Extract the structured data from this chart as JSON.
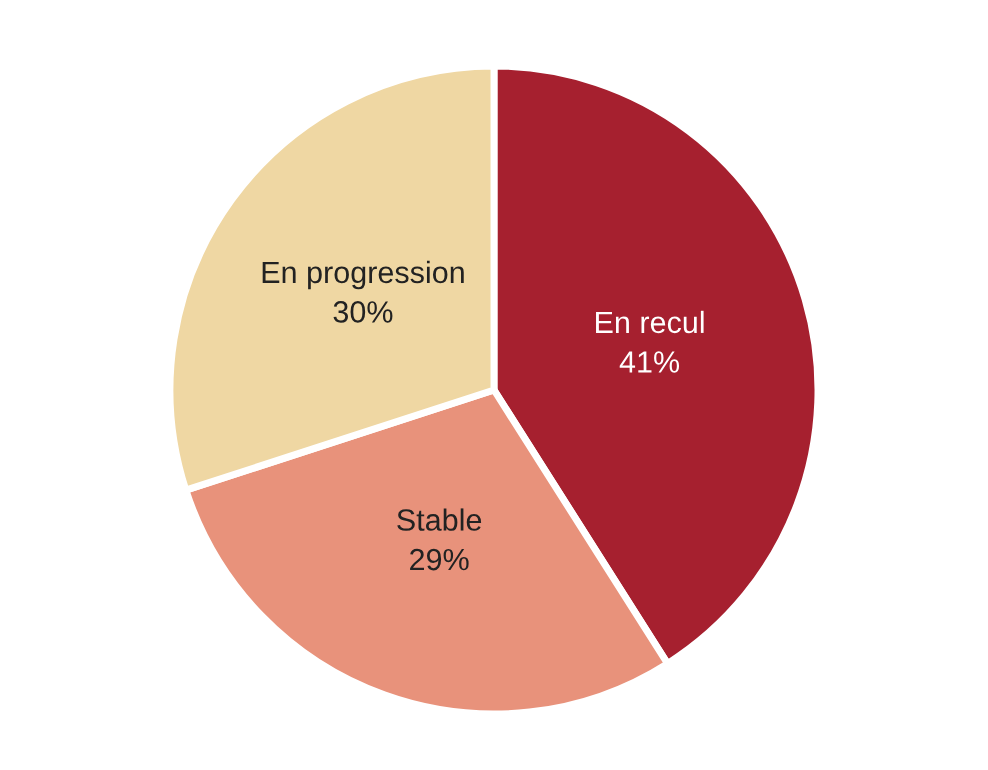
{
  "chart_data": {
    "type": "pie",
    "categories": [
      "En recul",
      "Stable",
      "En progression"
    ],
    "values": [
      41,
      29,
      30
    ],
    "colors": [
      "#a6202f",
      "#e8927b",
      "#efd7a3"
    ],
    "value_labels": [
      "41%",
      "29%",
      "30%"
    ]
  }
}
